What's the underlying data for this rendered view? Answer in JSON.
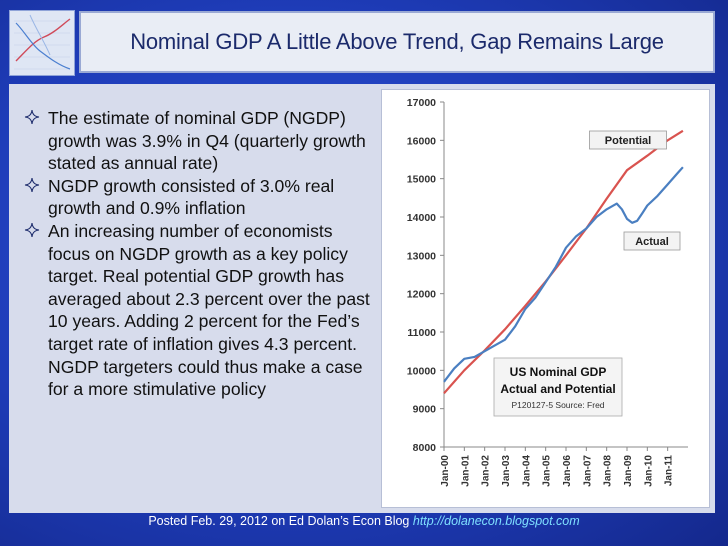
{
  "title": "Nominal GDP A Little Above Trend, Gap Remains Large",
  "bullets": [
    "The estimate of nominal GDP (NGDP) growth was 3.9% in Q4 (quarterly growth stated as annual rate)",
    "NGDP growth consisted of 3.0% real growth and 0.9% inflation",
    "An increasing number of economists focus on NGDP growth as a key policy target. Real potential GDP growth has averaged about 2.3 percent over the past 10 years. Adding 2 percent for the Fed’s target rate of inflation gives 4.3 percent. NGDP targeters could thus make a case for a more stimulative policy"
  ],
  "bullet_icon": "four-point-star-icon",
  "footer": {
    "text": "Posted Feb. 29, 2012 on Ed Dolan’s Econ Blog ",
    "link": "http://dolanecon.blogspot.com"
  },
  "colors": {
    "background": "#1f3fbd",
    "potential_line": "#d9534f",
    "actual_line": "#4a7fc1",
    "footer_link": "#7fe0ff"
  },
  "chart_data": {
    "type": "line",
    "title": "US Nominal GDP",
    "subtitle": "Actual and Potential",
    "source": "P120127-5 Source: Fred",
    "ylim": [
      8000,
      17000
    ],
    "y_ticks": [
      8000,
      9000,
      10000,
      11000,
      12000,
      13000,
      14000,
      15000,
      16000,
      17000
    ],
    "x_ticks": [
      "Jan-00",
      "Jan-01",
      "Jan-02",
      "Jan-03",
      "Jan-04",
      "Jan-05",
      "Jan-06",
      "Jan-07",
      "Jan-08",
      "Jan-09",
      "Jan-10",
      "Jan-11"
    ],
    "grid": false,
    "series": [
      {
        "name": "Potential",
        "x": [
          2000.0,
          2001.0,
          2002.0,
          2003.0,
          2004.0,
          2005.0,
          2006.0,
          2007.0,
          2008.0,
          2009.0,
          2010.0,
          2011.0,
          2011.75
        ],
        "values": [
          9400,
          10000,
          10520,
          11070,
          11680,
          12320,
          13000,
          13700,
          14480,
          15220,
          15600,
          16000,
          16250
        ]
      },
      {
        "name": "Actual",
        "x": [
          2000.0,
          2000.5,
          2001.0,
          2001.5,
          2002.0,
          2002.5,
          2003.0,
          2003.5,
          2004.0,
          2004.5,
          2005.0,
          2005.5,
          2006.0,
          2006.5,
          2007.0,
          2007.5,
          2008.0,
          2008.5,
          2008.75,
          2009.0,
          2009.25,
          2009.5,
          2009.75,
          2010.0,
          2010.5,
          2011.0,
          2011.5,
          2011.75
        ],
        "values": [
          9700,
          10050,
          10300,
          10350,
          10500,
          10650,
          10800,
          11150,
          11600,
          11900,
          12300,
          12700,
          13200,
          13500,
          13700,
          14000,
          14200,
          14350,
          14200,
          13950,
          13850,
          13900,
          14100,
          14300,
          14550,
          14850,
          15150,
          15300
        ]
      }
    ],
    "annotations": [
      "Potential",
      "Actual"
    ]
  }
}
